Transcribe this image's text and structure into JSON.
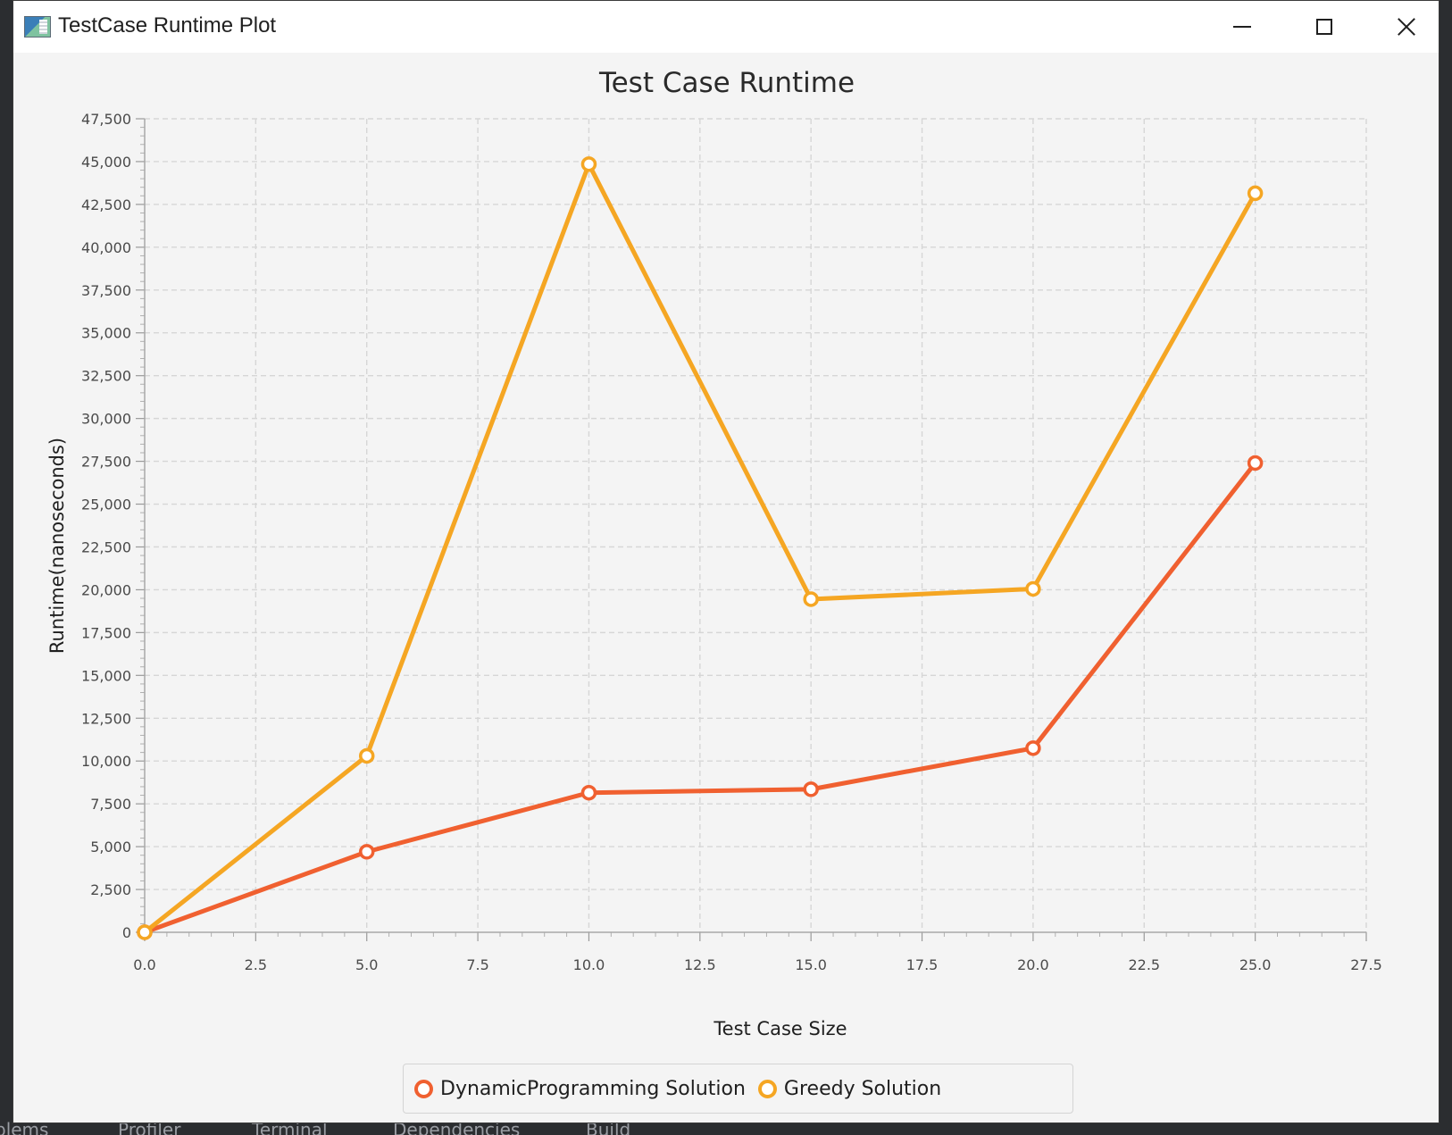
{
  "window": {
    "title": "TestCase Runtime Plot"
  },
  "ide_bottom_tabs": [
    "blems",
    "Profiler",
    "Terminal",
    "Dependencies",
    "Build"
  ],
  "chart_data": {
    "type": "line",
    "title": "Test Case Runtime",
    "xlabel": "Test Case Size",
    "ylabel": "Runtime(nanoseconds)",
    "xlim": [
      0,
      27.5
    ],
    "ylim": [
      0,
      47500
    ],
    "x_ticks": [
      "0.0",
      "2.5",
      "5.0",
      "7.5",
      "10.0",
      "12.5",
      "15.0",
      "17.5",
      "20.0",
      "22.5",
      "25.0",
      "27.5"
    ],
    "y_ticks": [
      "0",
      "2,500",
      "5,000",
      "7,500",
      "10,000",
      "12,500",
      "15,000",
      "17,500",
      "20,000",
      "22,500",
      "25,000",
      "27,500",
      "30,000",
      "32,500",
      "35,000",
      "37,500",
      "40,000",
      "42,500",
      "45,000",
      "47,500"
    ],
    "grid": true,
    "legend_position": "bottom",
    "series": [
      {
        "name": "DynamicProgramming Solution",
        "color": "#f06030",
        "x": [
          0,
          5,
          10,
          15,
          20,
          25
        ],
        "y": [
          0,
          4700,
          8150,
          8350,
          10750,
          27400
        ]
      },
      {
        "name": "Greedy Solution",
        "color": "#f5a623",
        "x": [
          0,
          5,
          10,
          15,
          20,
          25
        ],
        "y": [
          0,
          10300,
          44850,
          19450,
          20050,
          43150
        ]
      }
    ]
  }
}
